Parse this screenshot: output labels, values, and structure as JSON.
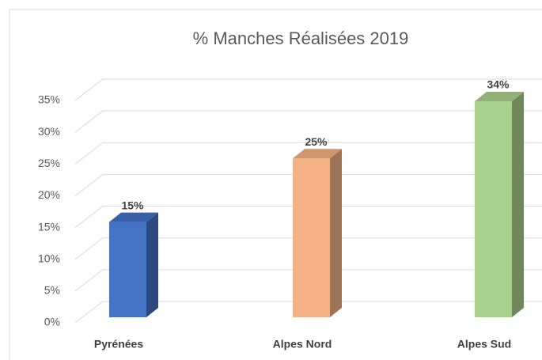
{
  "chart_data": {
    "type": "bar3d",
    "title": "% Manches Réalisées 2019",
    "categories": [
      "Pyrénées",
      "Alpes Nord",
      "Alpes Sud"
    ],
    "values": [
      15,
      25,
      34
    ],
    "value_labels": [
      "15%",
      "25%",
      "34%"
    ],
    "colors": [
      "#4472c4",
      "#f4b183",
      "#a9d18e"
    ],
    "ylim": [
      0,
      35
    ],
    "yticks": [
      {
        "value": 0,
        "label": "0%"
      },
      {
        "value": 5,
        "label": "5%"
      },
      {
        "value": 10,
        "label": "10%"
      },
      {
        "value": 15,
        "label": "15%"
      },
      {
        "value": 20,
        "label": "20%"
      },
      {
        "value": 25,
        "label": "25%"
      },
      {
        "value": 30,
        "label": "30%"
      },
      {
        "value": 35,
        "label": "35%"
      }
    ],
    "grid": true
  }
}
